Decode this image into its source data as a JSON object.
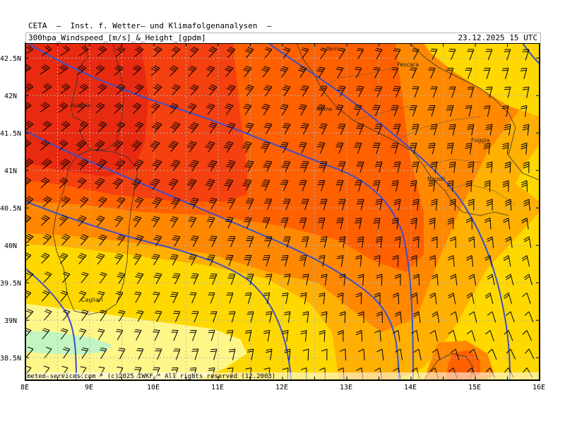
{
  "header": {
    "organization": "CETA  —  Inst. f. Wetter— und Klimafolgenanalysen  —",
    "title": "300hpa_Windspeed_[m/s]_&_Height_[gpdm]",
    "valid_time": "23.12.2025 15 UTC"
  },
  "footer": {
    "credit": "meteo-services.com * (c)2025 IWKF * All rights reserved (12.2003)"
  },
  "axes": {
    "lon_labels": [
      "8E",
      "9E",
      "10E",
      "11E",
      "12E",
      "13E",
      "14E",
      "15E",
      "16E"
    ],
    "lat_labels": [
      "42.5N",
      "42N",
      "41.5N",
      "41N",
      "40.5N",
      "40N",
      "39.5N",
      "39N",
      "38.5N"
    ]
  },
  "cities": [
    {
      "name": "Terni"
    },
    {
      "name": "Pescara"
    },
    {
      "name": "Ajaccio"
    },
    {
      "name": "Rome"
    },
    {
      "name": "Foggia"
    },
    {
      "name": "Napoli"
    },
    {
      "name": "Cagliari"
    }
  ],
  "map": {
    "lon_range": [
      8,
      16
    ],
    "lat_range": [
      38.2,
      42.7
    ],
    "grid": true,
    "colors": {
      "band_light_green": "#c2f5c2",
      "band_pale_yellow": "#fff68a",
      "band_yellow": "#ffd800",
      "band_orange_light": "#ffb000",
      "band_orange": "#ff8800",
      "band_orange_dark": "#ff6000",
      "band_red_orange": "#f54010",
      "band_red": "#e82a10",
      "contour": "#3c50c8",
      "barb": "#000000",
      "coast": "#222222",
      "grid": "#b4b4b4"
    }
  }
}
